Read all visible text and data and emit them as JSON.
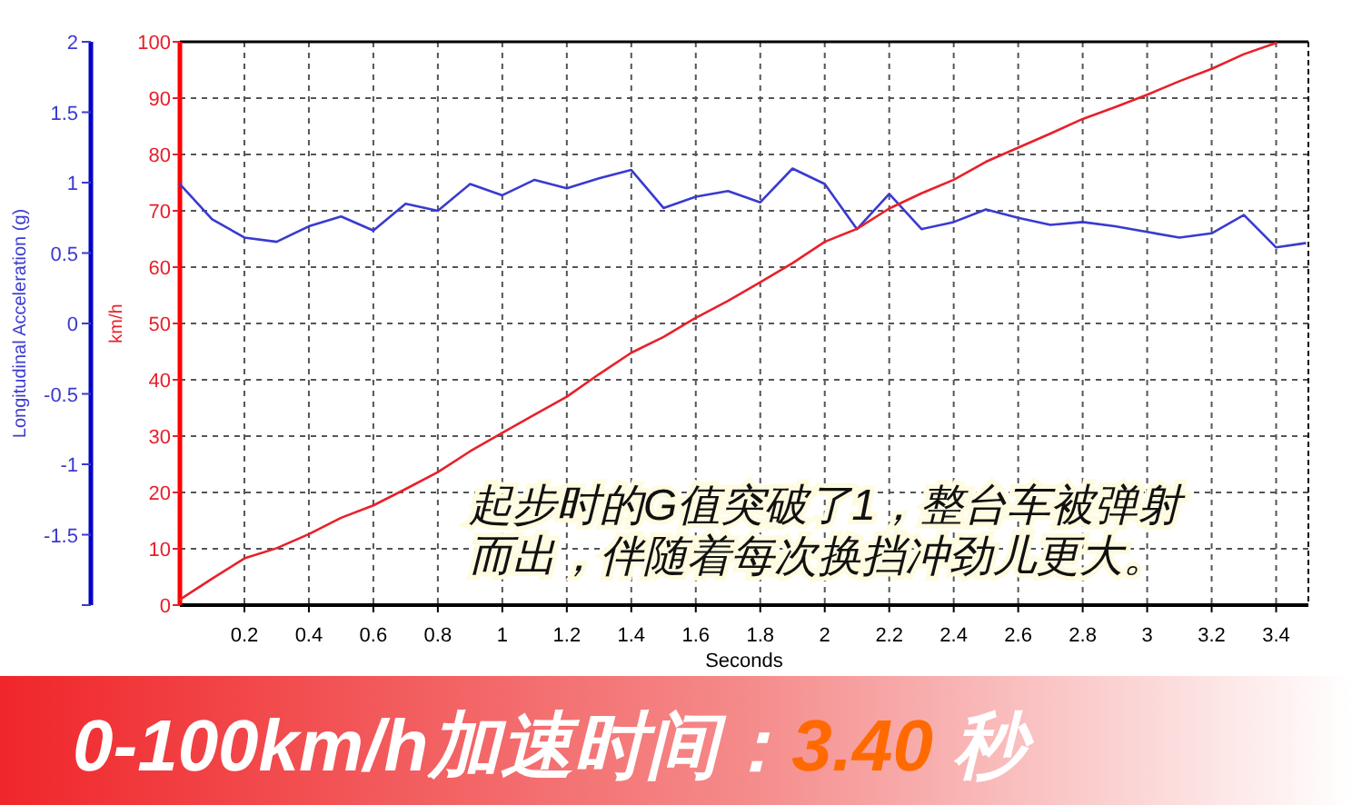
{
  "chart_data": {
    "type": "line",
    "title": "0-100km/h加速时间：3.40 秒",
    "xlabel": "Seconds",
    "ylabel": "Longitudinal Acceleration (g)",
    "y2label": "km/h",
    "annotations": [
      "起步时的G值突破了1，整台车被弹射而出，伴随着每次换挡冲劲儿更大。"
    ],
    "x": [
      0,
      0.1,
      0.2,
      0.3,
      0.4,
      0.5,
      0.6,
      0.7,
      0.8,
      0.9,
      1.0,
      1.1,
      1.2,
      1.3,
      1.4,
      1.5,
      1.6,
      1.7,
      1.8,
      1.9,
      2.0,
      2.1,
      2.2,
      2.3,
      2.4,
      2.5,
      2.6,
      2.7,
      2.8,
      2.9,
      3.0,
      3.1,
      3.2,
      3.3,
      3.4,
      3.49
    ],
    "series": [
      {
        "color": "#3a3ad0",
        "values": [
          0.99,
          0.74,
          0.61,
          0.58,
          0.69,
          0.76,
          0.66,
          0.85,
          0.8,
          0.99,
          0.91,
          1.02,
          0.96,
          1.03,
          1.09,
          0.82,
          0.9,
          0.94,
          0.86,
          1.1,
          0.99,
          0.67,
          0.92,
          0.67,
          0.72,
          0.81,
          0.75,
          0.7,
          0.72,
          0.69,
          0.65,
          0.61,
          0.64,
          0.77,
          0.54,
          0.57
        ]
      },
      {
        "color": "#e8202a",
        "axis": "y2",
        "values": [
          1.0,
          4.7,
          8.3,
          10.1,
          12.6,
          15.5,
          17.7,
          20.6,
          23.6,
          27.3,
          30.6,
          33.8,
          37.0,
          41.0,
          44.8,
          47.6,
          51.0,
          54.0,
          57.3,
          60.7,
          64.5,
          66.8,
          70.4,
          73.1,
          75.5,
          78.7,
          81.2,
          83.7,
          86.3,
          88.4,
          90.6,
          93.0,
          95.2,
          97.8,
          99.8,
          null
        ]
      }
    ],
    "xlim": [
      0,
      3.5
    ],
    "xticks": [
      0.2,
      0.4,
      0.6,
      0.8,
      1,
      1.2,
      1.4,
      1.6,
      1.8,
      2,
      2.2,
      2.4,
      2.6,
      2.8,
      3,
      3.2,
      3.4
    ],
    "ylim": [
      -2,
      2
    ],
    "yticks": [
      {
        "value": -2,
        "label": null
      },
      -1.5,
      -1,
      -0.5,
      0,
      0.5,
      1,
      1.5,
      2
    ],
    "y2lim": [
      0,
      100
    ],
    "y2ticks": [
      0,
      10,
      20,
      30,
      40,
      50,
      60,
      70,
      80,
      90,
      100
    ],
    "grid": true,
    "line_style": "solid",
    "marker": "none"
  }
}
